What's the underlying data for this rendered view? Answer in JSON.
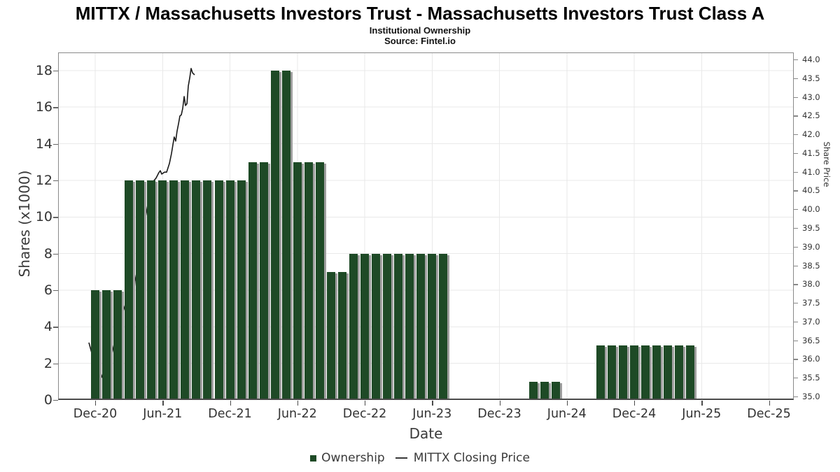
{
  "header": {
    "title": "MITTX / Massachusetts Investors Trust - Massachusetts Investors Trust Class A",
    "subtitle": "Institutional Ownership",
    "source": "Source: Fintel.io"
  },
  "legend": {
    "ownership_label": "Ownership",
    "price_label": "MITTX Closing Price"
  },
  "colors": {
    "bar": "#1e4a26",
    "bar_shadow": "#9e9e9e",
    "line": "#1a1a1a",
    "grid": "#e9e9e9",
    "frame": "#8a8a8a",
    "tick_label": "#333333"
  },
  "chart_data": {
    "type": "bar",
    "title": "MITTX / Massachusetts Investors Trust - Massachusetts Investors Trust Class A",
    "xlabel": "Date",
    "ylabel_left": "Shares (x1000)",
    "ylabel_right": "Share Price",
    "ylim_left": [
      0,
      18.5
    ],
    "ylim_right": [
      34.8,
      44.0
    ],
    "grid": true,
    "legend_position": "bottom-center",
    "x_tick_labels": [
      "Dec-20",
      "Jun-21",
      "Dec-21",
      "Jun-22",
      "Dec-22",
      "Jun-23",
      "Dec-23",
      "Jun-24",
      "Dec-24",
      "Jun-25",
      "Dec-25"
    ],
    "y_left_ticks": [
      0,
      2,
      4,
      6,
      8,
      10,
      12,
      14,
      16,
      18
    ],
    "y_right_ticks": [
      "35.0",
      "35.5",
      "36.0",
      "36.5",
      "37.0",
      "37.5",
      "38.0",
      "38.5",
      "39.0",
      "39.5",
      "40.0",
      "40.5",
      "41.0",
      "41.5",
      "42.0",
      "42.5",
      "43.0",
      "43.5",
      "44.0"
    ],
    "categories": [
      "Dec-20",
      "Jan-21",
      "Feb-21",
      "Mar-21",
      "Apr-21",
      "May-21",
      "Jun-21",
      "Jul-21",
      "Aug-21",
      "Sep-21",
      "Oct-21",
      "Nov-21",
      "Dec-21",
      "Jan-22",
      "Feb-22",
      "Mar-22",
      "Apr-22",
      "May-22",
      "Jun-22",
      "Jul-22",
      "Aug-22",
      "Sep-22",
      "Oct-22",
      "Nov-22",
      "Dec-22",
      "Jan-23",
      "Feb-23",
      "Mar-23",
      "Apr-23",
      "May-23",
      "Jun-23",
      "Jul-23",
      "Aug-23",
      "Sep-23",
      "Oct-23",
      "Nov-23",
      "Dec-23",
      "Jan-24",
      "Feb-24",
      "Mar-24",
      "Apr-24",
      "May-24",
      "Jun-24",
      "Jul-24",
      "Aug-24",
      "Sep-24",
      "Oct-24",
      "Nov-24",
      "Dec-24",
      "Jan-25",
      "Feb-25",
      "Mar-25",
      "Apr-25",
      "May-25"
    ],
    "series": [
      {
        "name": "Ownership",
        "type": "bar",
        "axis": "left",
        "values": [
          6,
          6,
          6,
          12,
          12,
          12,
          12,
          12,
          12,
          12,
          12,
          12,
          12,
          12,
          13,
          13,
          18,
          18,
          13,
          13,
          13,
          7,
          7,
          8,
          8,
          8,
          8,
          8,
          8,
          8,
          8,
          8,
          null,
          null,
          null,
          null,
          null,
          null,
          null,
          1,
          1,
          1,
          null,
          null,
          null,
          3,
          3,
          3,
          3,
          3,
          3,
          3,
          3,
          3
        ]
      },
      {
        "name": "MITTX Closing Price",
        "type": "line",
        "axis": "right",
        "points_months_from_dec20_vs_price": [
          [
            -0.56,
            36.44
          ],
          [
            -0.19,
            36.03
          ],
          [
            0.19,
            35.8
          ],
          [
            0.56,
            35.51
          ],
          [
            0.87,
            35.77
          ],
          [
            1.18,
            36.03
          ],
          [
            1.5,
            36.16
          ],
          [
            1.75,
            36.48
          ],
          [
            1.99,
            36.81
          ],
          [
            2.24,
            37.04
          ],
          [
            2.43,
            37.22
          ],
          [
            2.68,
            37.45
          ],
          [
            2.93,
            37.75
          ],
          [
            3.05,
            37.33
          ],
          [
            3.18,
            36.81
          ],
          [
            3.37,
            37.52
          ],
          [
            3.55,
            38.08
          ],
          [
            3.74,
            38.38
          ],
          [
            3.93,
            38.75
          ],
          [
            4.11,
            39.09
          ],
          [
            4.3,
            39.43
          ],
          [
            4.49,
            39.8
          ],
          [
            4.68,
            40.12
          ],
          [
            4.86,
            40.42
          ],
          [
            5.05,
            40.66
          ],
          [
            5.24,
            40.77
          ],
          [
            5.42,
            40.83
          ],
          [
            5.67,
            40.98
          ],
          [
            5.8,
            41.03
          ],
          [
            5.92,
            40.94
          ],
          [
            6.17,
            40.99
          ],
          [
            6.36,
            40.99
          ],
          [
            6.61,
            41.22
          ],
          [
            6.79,
            41.48
          ],
          [
            6.92,
            41.72
          ],
          [
            7.04,
            41.93
          ],
          [
            7.17,
            41.82
          ],
          [
            7.29,
            42.08
          ],
          [
            7.42,
            42.28
          ],
          [
            7.54,
            42.49
          ],
          [
            7.67,
            42.52
          ],
          [
            7.79,
            42.69
          ],
          [
            7.92,
            43.01
          ],
          [
            8.04,
            42.77
          ],
          [
            8.17,
            42.82
          ],
          [
            8.29,
            43.29
          ],
          [
            8.42,
            43.51
          ],
          [
            8.54,
            43.76
          ],
          [
            8.67,
            43.64
          ],
          [
            8.85,
            43.59
          ]
        ]
      }
    ]
  }
}
